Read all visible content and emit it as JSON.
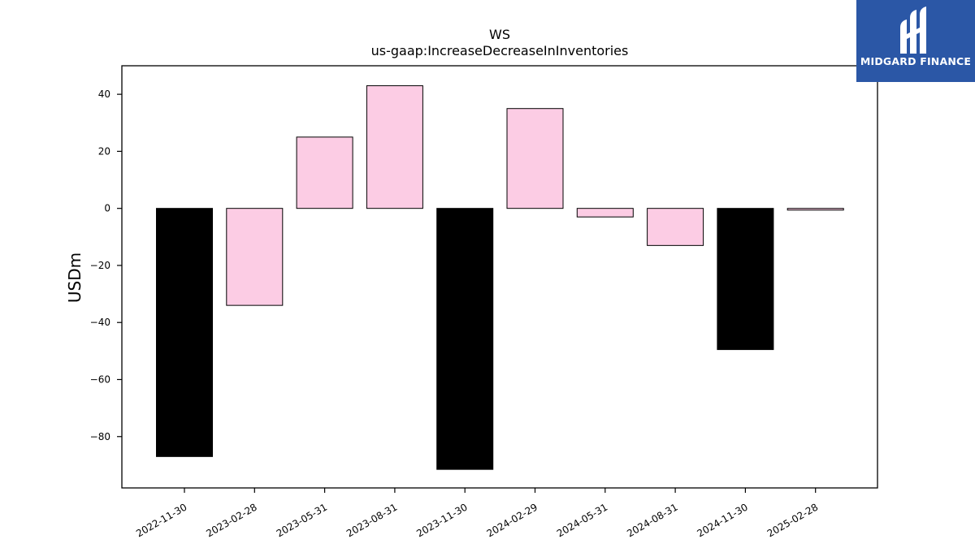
{
  "logo": {
    "text": "MIDGARD FINANCE",
    "background": "#2b57a6"
  },
  "chart_data": {
    "type": "bar",
    "title": "WS",
    "subtitle": "us-gaap:IncreaseDecreaseInInventories",
    "xlabel": "",
    "ylabel": "USDm",
    "ylim": [
      -98,
      50
    ],
    "yticks": [
      -80,
      -60,
      -40,
      -20,
      0,
      20,
      40
    ],
    "grid": false,
    "categories": [
      "2022-11-30",
      "2023-02-28",
      "2023-05-31",
      "2023-08-31",
      "2023-11-30",
      "2024-02-29",
      "2024-05-31",
      "2024-08-31",
      "2024-11-30",
      "2025-02-28"
    ],
    "values": [
      -87,
      -34,
      25,
      43,
      -91.5,
      35,
      -3,
      -13,
      -49.5,
      -0.6
    ],
    "bar_colors": [
      "#000000",
      "#fccce4",
      "#fccce4",
      "#fccce4",
      "#000000",
      "#fccce4",
      "#fccce4",
      "#fccce4",
      "#000000",
      "#fccce4"
    ]
  }
}
